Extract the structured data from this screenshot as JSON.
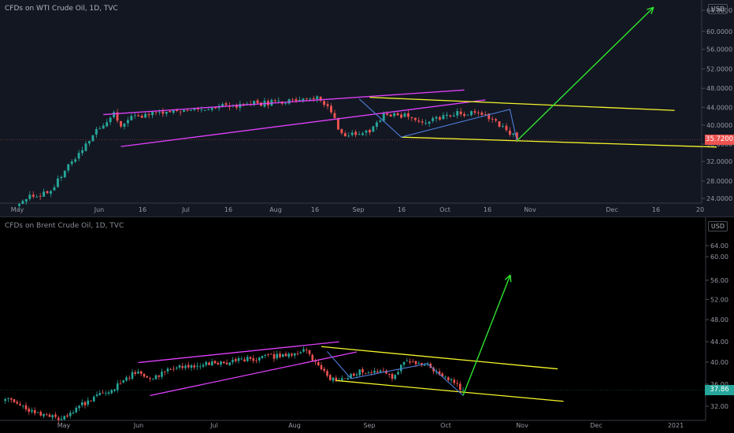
{
  "colors": {
    "up": "#26a69a",
    "down": "#ef5350",
    "channel_up": "#e040fb",
    "channel_down": "#f5f52a",
    "swing": "#4f7ddb",
    "forecast": "#2fe52f",
    "wti_tag": "#ef5350",
    "brent_tag": "#26a69a"
  },
  "chart_data": [
    {
      "type": "candlestick",
      "title": "CFDs on WTI Crude Oil, 1D, TVC",
      "currency": "USD",
      "last_price": "35.7200",
      "y_ticks": [
        "64.0000",
        "60.0000",
        "56.0000",
        "52.0000",
        "48.0000",
        "44.0000",
        "40.0000",
        "36.0000",
        "32.0000",
        "28.0000",
        "24.0000"
      ],
      "x_ticks": [
        "May",
        "Jun",
        "16",
        "Jul",
        "16",
        "Aug",
        "16",
        "Sep",
        "16",
        "Oct",
        "16",
        "Nov",
        "Dec",
        "16",
        "20"
      ],
      "anchors": [
        [
          1,
          24
        ],
        [
          10,
          26
        ],
        [
          20,
          35
        ],
        [
          24,
          38.2
        ],
        [
          28,
          40.5
        ],
        [
          30,
          38.5
        ],
        [
          34,
          40.3
        ],
        [
          44,
          40.8
        ],
        [
          56,
          41.8
        ],
        [
          66,
          42.5
        ],
        [
          80,
          43.2
        ],
        [
          86,
          43.6
        ],
        [
          89,
          42.3
        ],
        [
          92,
          38.2
        ],
        [
          94,
          36.5
        ],
        [
          97,
          36.6
        ],
        [
          101,
          37.6
        ],
        [
          105,
          40.6
        ],
        [
          112,
          40.2
        ],
        [
          118,
          39.1
        ],
        [
          125,
          40.7
        ],
        [
          131,
          40.8
        ],
        [
          135,
          40.1
        ],
        [
          139,
          38.2
        ],
        [
          142,
          36.4
        ],
        [
          143,
          35.72
        ]
      ],
      "channels": [
        {
          "role": "ascending-channel",
          "color": "channel_up",
          "points": [
            [
              25,
              40.5
            ],
            [
              128,
              45.2
            ]
          ]
        },
        {
          "role": "ascending-channel",
          "color": "channel_up",
          "points": [
            [
              30,
              34.4
            ],
            [
              134,
              43.3
            ]
          ]
        },
        {
          "role": "descending-channel",
          "color": "channel_down",
          "points": [
            [
              101,
              43.8
            ],
            [
              188,
              41.3
            ]
          ]
        },
        {
          "role": "descending-channel",
          "color": "channel_down",
          "points": [
            [
              110,
              36.2
            ],
            [
              200,
              34.3
            ]
          ]
        }
      ],
      "swings": [
        [
          [
            98,
            43.5
          ],
          [
            110,
            36.2
          ],
          [
            141,
            41.5
          ],
          [
            143,
            35.5
          ]
        ]
      ],
      "forecast": [
        [
          143,
          35.5
        ],
        [
          182,
          61
        ]
      ]
    },
    {
      "type": "candlestick",
      "title": "CFDs on Brent Crude Oil, 1D, TVC",
      "currency": "USD",
      "last_price": "37.86",
      "y_ticks": [
        "64.00",
        "60.00",
        "56.00",
        "52.00",
        "48.00",
        "44.00",
        "40.00",
        "36.00",
        "32.00"
      ],
      "x_ticks": [
        "May",
        "Jun",
        "Jul",
        "Aug",
        "Sep",
        "Oct",
        "Nov",
        "Dec",
        "2021"
      ],
      "anchors": [
        [
          1,
          36.5
        ],
        [
          10,
          33.5
        ],
        [
          20,
          32
        ],
        [
          30,
          36
        ],
        [
          40,
          39
        ],
        [
          46,
          42
        ],
        [
          50,
          40
        ],
        [
          58,
          42.5
        ],
        [
          70,
          43.2
        ],
        [
          84,
          44.3
        ],
        [
          98,
          45.2
        ],
        [
          103,
          45.9
        ],
        [
          107,
          42.8
        ],
        [
          111,
          40.2
        ],
        [
          113,
          39.9
        ],
        [
          117,
          40.5
        ],
        [
          122,
          41.8
        ],
        [
          128,
          41.9
        ],
        [
          132,
          40.4
        ],
        [
          136,
          43.4
        ],
        [
          143,
          43.1
        ],
        [
          148,
          41.6
        ],
        [
          154,
          38.9
        ],
        [
          156,
          37.86
        ]
      ],
      "channels": [
        {
          "role": "ascending-channel",
          "color": "channel_up",
          "points": [
            [
              46,
              43.5
            ],
            [
              114,
              47.8
            ]
          ]
        },
        {
          "role": "ascending-channel",
          "color": "channel_up",
          "points": [
            [
              50,
              36.7
            ],
            [
              120,
              45.7
            ]
          ]
        },
        {
          "role": "descending-channel",
          "color": "channel_down",
          "points": [
            [
              108,
              46.8
            ],
            [
              188,
              42.2
            ]
          ]
        },
        {
          "role": "descending-channel",
          "color": "channel_down",
          "points": [
            [
              113,
              39.8
            ],
            [
              190,
              35.5
            ]
          ]
        }
      ],
      "swings": [
        [
          [
            110,
            45.8
          ],
          [
            118,
            40.2
          ],
          [
            144,
            43.3
          ],
          [
            156,
            36.7
          ]
        ]
      ],
      "forecast": [
        [
          156,
          36.7
        ],
        [
          172,
          61.6
        ]
      ]
    }
  ]
}
